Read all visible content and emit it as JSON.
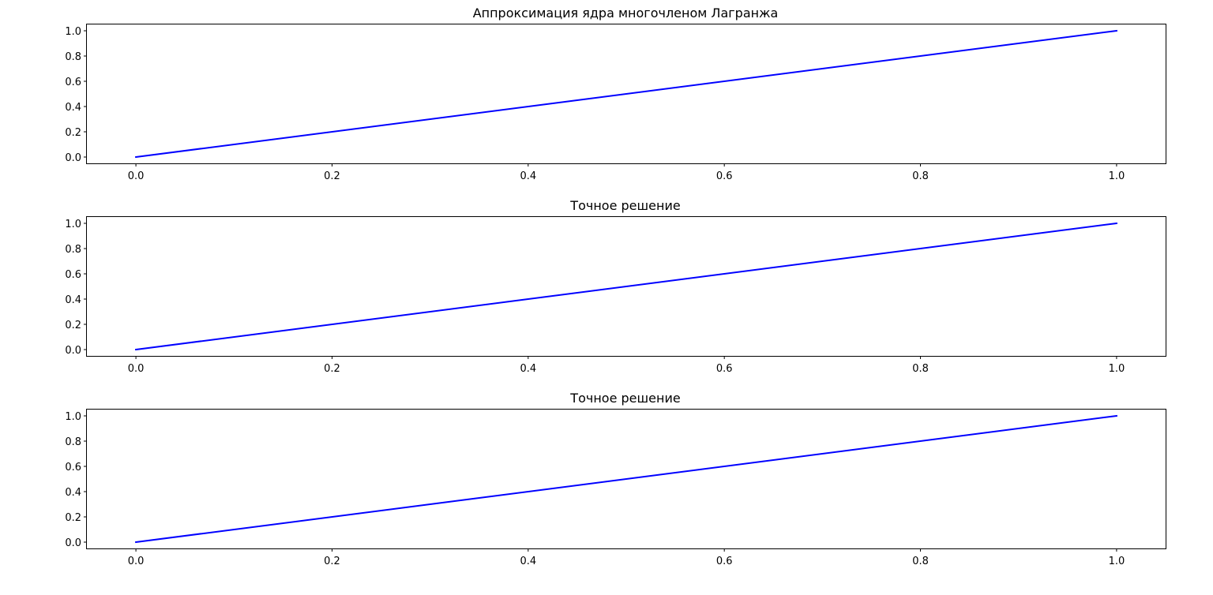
{
  "figure": {
    "background": "#ffffff"
  },
  "chart_data": [
    {
      "type": "line",
      "title": "Аппроксимация ядра многочленом Лагранжа",
      "xlabel": "",
      "ylabel": "",
      "xlim": [
        -0.05,
        1.05
      ],
      "ylim": [
        -0.05,
        1.05
      ],
      "xticks": [
        0.0,
        0.2,
        0.4,
        0.6,
        0.8,
        1.0
      ],
      "xtick_labels": [
        "0.0",
        "0.2",
        "0.4",
        "0.6",
        "0.8",
        "1.0"
      ],
      "yticks": [
        0.0,
        0.2,
        0.4,
        0.6,
        0.8,
        1.0
      ],
      "ytick_labels": [
        "0.0",
        "0.2",
        "0.4",
        "0.6",
        "0.8",
        "1.0"
      ],
      "grid": false,
      "series": [
        {
          "color": "#0000ff",
          "x": [
            0.0,
            1.0
          ],
          "y": [
            0.0,
            1.0
          ]
        }
      ]
    },
    {
      "type": "line",
      "title": "Точное решение",
      "xlabel": "",
      "ylabel": "",
      "xlim": [
        -0.05,
        1.05
      ],
      "ylim": [
        -0.05,
        1.05
      ],
      "xticks": [
        0.0,
        0.2,
        0.4,
        0.6,
        0.8,
        1.0
      ],
      "xtick_labels": [
        "0.0",
        "0.2",
        "0.4",
        "0.6",
        "0.8",
        "1.0"
      ],
      "yticks": [
        0.0,
        0.2,
        0.4,
        0.6,
        0.8,
        1.0
      ],
      "ytick_labels": [
        "0.0",
        "0.2",
        "0.4",
        "0.6",
        "0.8",
        "1.0"
      ],
      "grid": false,
      "series": [
        {
          "color": "#0000ff",
          "x": [
            0.0,
            1.0
          ],
          "y": [
            0.0,
            1.0
          ]
        }
      ]
    },
    {
      "type": "line",
      "title": "Точное решение",
      "xlabel": "",
      "ylabel": "",
      "xlim": [
        -0.05,
        1.05
      ],
      "ylim": [
        -0.05,
        1.05
      ],
      "xticks": [
        0.0,
        0.2,
        0.4,
        0.6,
        0.8,
        1.0
      ],
      "xtick_labels": [
        "0.0",
        "0.2",
        "0.4",
        "0.6",
        "0.8",
        "1.0"
      ],
      "yticks": [
        0.0,
        0.2,
        0.4,
        0.6,
        0.8,
        1.0
      ],
      "ytick_labels": [
        "0.0",
        "0.2",
        "0.4",
        "0.6",
        "0.8",
        "1.0"
      ],
      "grid": false,
      "series": [
        {
          "color": "#0000ff",
          "x": [
            0.0,
            1.0
          ],
          "y": [
            0.0,
            1.0
          ]
        }
      ]
    }
  ]
}
